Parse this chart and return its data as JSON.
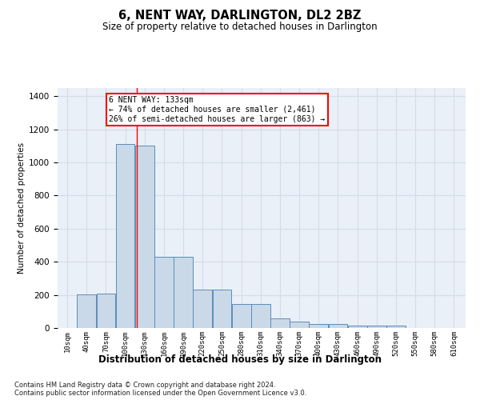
{
  "title": "6, NENT WAY, DARLINGTON, DL2 2BZ",
  "subtitle": "Size of property relative to detached houses in Darlington",
  "xlabel": "Distribution of detached houses by size in Darlington",
  "ylabel": "Number of detached properties",
  "footnote1": "Contains HM Land Registry data © Crown copyright and database right 2024.",
  "footnote2": "Contains public sector information licensed under the Open Government Licence v3.0.",
  "bar_color": "#c9d9e8",
  "bar_edge_color": "#5b8db8",
  "grid_color": "#d4dde8",
  "background_color": "#eaf0f8",
  "annotation_line1": "6 NENT WAY: 133sqm",
  "annotation_line2": "← 74% of detached houses are smaller (2,461)",
  "annotation_line3": "26% of semi-detached houses are larger (863) →",
  "annotation_border_color": "red",
  "red_line_x": 133,
  "categories": [
    "10sqm",
    "40sqm",
    "70sqm",
    "100sqm",
    "130sqm",
    "160sqm",
    "190sqm",
    "220sqm",
    "250sqm",
    "280sqm",
    "310sqm",
    "340sqm",
    "370sqm",
    "400sqm",
    "430sqm",
    "460sqm",
    "490sqm",
    "520sqm",
    "550sqm",
    "580sqm",
    "610sqm"
  ],
  "values": [
    0,
    205,
    210,
    1110,
    1100,
    430,
    430,
    232,
    232,
    145,
    145,
    60,
    40,
    25,
    25,
    15,
    15,
    15,
    0,
    0,
    0
  ],
  "bin_width": 30,
  "bin_starts": [
    10,
    40,
    70,
    100,
    130,
    160,
    190,
    220,
    250,
    280,
    310,
    340,
    370,
    400,
    430,
    460,
    490,
    520,
    550,
    580,
    610
  ],
  "xlim_min": 10,
  "xlim_max": 643,
  "ylim": [
    0,
    1450
  ],
  "yticks": [
    0,
    200,
    400,
    600,
    800,
    1000,
    1200,
    1400
  ]
}
